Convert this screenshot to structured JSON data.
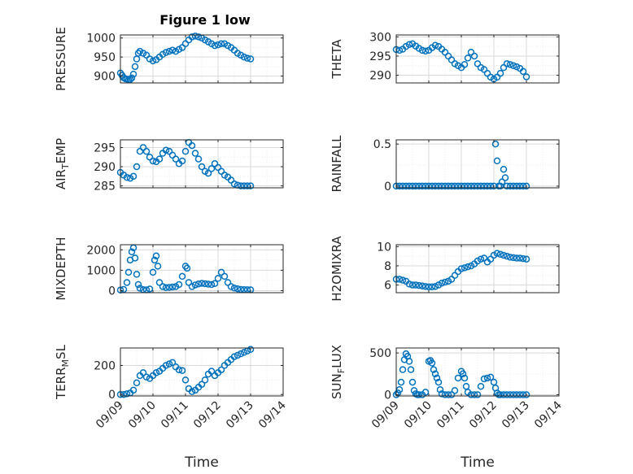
{
  "chart_data": [
    {
      "type": "scatter",
      "title": "Figure 1 low",
      "ylabel": "PRESSURE",
      "xlabel": "",
      "ylim": [
        882,
        1008
      ],
      "yticks": [
        900,
        950,
        1000
      ],
      "ytick_labels": [
        "900",
        "950",
        "1000"
      ],
      "xlim": [
        0,
        5
      ],
      "xtick_labels": [
        "09/09",
        "09/10",
        "09/11",
        "09/12",
        "09/13",
        "09/14"
      ],
      "marker_color": "#0072bd",
      "grid": true,
      "x": [
        0,
        0.05,
        0.1,
        0.15,
        0.2,
        0.25,
        0.3,
        0.35,
        0.4,
        0.45,
        0.5,
        0.55,
        0.6,
        0.7,
        0.8,
        0.9,
        1.0,
        1.1,
        1.2,
        1.3,
        1.4,
        1.5,
        1.6,
        1.7,
        1.8,
        1.9,
        2.0,
        2.1,
        2.2,
        2.3,
        2.4,
        2.5,
        2.6,
        2.7,
        2.8,
        2.9,
        3.0,
        3.1,
        3.2,
        3.3,
        3.4,
        3.5,
        3.6,
        3.7,
        3.8,
        3.9,
        4.0
      ],
      "y": [
        908,
        902,
        896,
        893,
        892,
        890,
        891,
        895,
        905,
        925,
        945,
        960,
        965,
        960,
        955,
        945,
        940,
        943,
        950,
        957,
        962,
        965,
        968,
        965,
        970,
        975,
        985,
        995,
        1003,
        1005,
        1003,
        1000,
        995,
        990,
        985,
        980,
        982,
        985,
        985,
        980,
        975,
        968,
        960,
        955,
        950,
        947,
        945
      ]
    },
    {
      "type": "scatter",
      "ylabel": "THETA",
      "xlabel": "",
      "ylim": [
        288,
        300.5
      ],
      "yticks": [
        290,
        295,
        300
      ],
      "ytick_labels": [
        "290",
        "295",
        "300"
      ],
      "xlim": [
        0,
        5
      ],
      "xtick_labels": [
        "09/09",
        "09/10",
        "09/11",
        "09/12",
        "09/13",
        "09/14"
      ],
      "marker_color": "#0072bd",
      "grid": true,
      "x": [
        0,
        0.1,
        0.2,
        0.3,
        0.4,
        0.5,
        0.6,
        0.7,
        0.8,
        0.9,
        1.0,
        1.1,
        1.2,
        1.3,
        1.4,
        1.5,
        1.6,
        1.7,
        1.8,
        1.9,
        2.0,
        2.1,
        2.2,
        2.3,
        2.4,
        2.5,
        2.6,
        2.7,
        2.8,
        2.9,
        3.0,
        3.1,
        3.2,
        3.3,
        3.4,
        3.5,
        3.6,
        3.7,
        3.8,
        3.9,
        4.0
      ],
      "y": [
        296.7,
        296.5,
        296.8,
        297.5,
        298.0,
        298.2,
        297.6,
        297.0,
        296.5,
        296.3,
        296.5,
        297.2,
        297.8,
        297.5,
        296.8,
        296.0,
        295.0,
        294.0,
        293.0,
        292.5,
        292.0,
        292.8,
        294.5,
        296.0,
        295.0,
        293.0,
        292.0,
        291.5,
        290.5,
        289.5,
        289.0,
        289.5,
        290.5,
        292.0,
        293.0,
        292.8,
        292.5,
        292.2,
        291.8,
        291.0,
        289.6
      ]
    },
    {
      "type": "scatter",
      "ylabel": "AIR_TEMP",
      "xlabel": "",
      "ylim": [
        284.5,
        297
      ],
      "yticks": [
        285,
        290,
        295
      ],
      "ytick_labels": [
        "285",
        "290",
        "295"
      ],
      "xlim": [
        0,
        5
      ],
      "xtick_labels": [
        "09/09",
        "09/10",
        "09/11",
        "09/12",
        "09/13",
        "09/14"
      ],
      "marker_color": "#0072bd",
      "grid": true,
      "x": [
        0,
        0.1,
        0.2,
        0.3,
        0.4,
        0.5,
        0.6,
        0.7,
        0.8,
        0.9,
        1.0,
        1.1,
        1.2,
        1.3,
        1.4,
        1.5,
        1.6,
        1.7,
        1.8,
        1.9,
        2.0,
        2.1,
        2.2,
        2.3,
        2.4,
        2.5,
        2.6,
        2.7,
        2.8,
        2.9,
        3.0,
        3.1,
        3.2,
        3.3,
        3.4,
        3.5,
        3.6,
        3.7,
        3.8,
        3.9,
        4.0
      ],
      "y": [
        288.5,
        287.8,
        287.2,
        287.0,
        287.5,
        290.0,
        294.0,
        295.0,
        294.0,
        292.5,
        291.5,
        291.3,
        292.0,
        293.5,
        294.3,
        294.0,
        293.0,
        292.0,
        290.8,
        291.5,
        294.0,
        296.3,
        295.5,
        293.5,
        292.0,
        290.0,
        288.8,
        288.3,
        289.5,
        290.8,
        289.8,
        288.8,
        287.8,
        287.3,
        286.5,
        285.5,
        285.2,
        285.0,
        285.0,
        285.0,
        285.0
      ]
    },
    {
      "type": "scatter",
      "ylabel": "RAINFALL",
      "xlabel": "",
      "ylim": [
        -0.02,
        0.55
      ],
      "yticks": [
        0,
        0.5
      ],
      "ytick_labels": [
        "0",
        "0.5"
      ],
      "xlim": [
        0,
        5
      ],
      "xtick_labels": [
        "09/09",
        "09/10",
        "09/11",
        "09/12",
        "09/13",
        "09/14"
      ],
      "marker_color": "#0072bd",
      "grid": true,
      "x": [
        0,
        0.1,
        0.2,
        0.3,
        0.4,
        0.5,
        0.6,
        0.7,
        0.8,
        0.9,
        1.0,
        1.1,
        1.2,
        1.3,
        1.4,
        1.5,
        1.6,
        1.7,
        1.8,
        1.9,
        2.0,
        2.1,
        2.2,
        2.3,
        2.4,
        2.5,
        2.6,
        2.7,
        2.8,
        2.9,
        3.0,
        3.05,
        3.1,
        3.15,
        3.2,
        3.25,
        3.3,
        3.35,
        3.4,
        3.5,
        3.6,
        3.7,
        3.8,
        3.9,
        4.0
      ],
      "y": [
        0,
        0,
        0,
        0,
        0,
        0,
        0,
        0,
        0,
        0,
        0,
        0,
        0,
        0,
        0,
        0,
        0,
        0,
        0,
        0,
        0,
        0,
        0,
        0,
        0,
        0,
        0,
        0,
        0,
        0,
        0,
        0.5,
        0.3,
        0,
        0,
        0.05,
        0.2,
        0.1,
        0,
        0,
        0,
        0,
        0,
        0,
        0
      ]
    },
    {
      "type": "scatter",
      "ylabel": "MIXDEPTH",
      "xlabel": "",
      "ylim": [
        -100,
        2250
      ],
      "yticks": [
        0,
        1000,
        2000
      ],
      "ytick_labels": [
        "0",
        "1000",
        "2000"
      ],
      "xlim": [
        0,
        5
      ],
      "xtick_labels": [
        "09/09",
        "09/10",
        "09/11",
        "09/12",
        "09/13",
        "09/14"
      ],
      "marker_color": "#0072bd",
      "grid": true,
      "x": [
        0,
        0.1,
        0.2,
        0.25,
        0.3,
        0.35,
        0.4,
        0.45,
        0.5,
        0.55,
        0.6,
        0.7,
        0.8,
        0.9,
        1.0,
        1.05,
        1.1,
        1.15,
        1.2,
        1.3,
        1.4,
        1.5,
        1.6,
        1.7,
        1.8,
        1.9,
        2.0,
        2.05,
        2.1,
        2.2,
        2.3,
        2.4,
        2.5,
        2.6,
        2.7,
        2.8,
        2.9,
        3.0,
        3.1,
        3.2,
        3.3,
        3.4,
        3.5,
        3.6,
        3.7,
        3.8,
        3.9,
        4.0
      ],
      "y": [
        30,
        60,
        400,
        900,
        1500,
        1900,
        2100,
        1600,
        800,
        300,
        120,
        50,
        40,
        80,
        900,
        1500,
        1700,
        1200,
        400,
        200,
        150,
        160,
        180,
        200,
        300,
        700,
        1200,
        1100,
        400,
        200,
        280,
        330,
        360,
        340,
        320,
        300,
        350,
        600,
        900,
        700,
        400,
        200,
        130,
        90,
        60,
        50,
        45,
        40
      ]
    },
    {
      "type": "scatter",
      "ylabel": "H2OMIXRA",
      "xlabel": "",
      "ylim": [
        5.2,
        10.2
      ],
      "yticks": [
        6,
        8,
        10
      ],
      "ytick_labels": [
        "6",
        "8",
        "10"
      ],
      "xlim": [
        0,
        5
      ],
      "xtick_labels": [
        "09/09",
        "09/10",
        "09/11",
        "09/12",
        "09/13",
        "09/14"
      ],
      "marker_color": "#0072bd",
      "grid": true,
      "x": [
        0,
        0.1,
        0.2,
        0.3,
        0.4,
        0.5,
        0.6,
        0.7,
        0.8,
        0.9,
        1.0,
        1.1,
        1.2,
        1.3,
        1.4,
        1.5,
        1.6,
        1.7,
        1.8,
        1.9,
        2.0,
        2.1,
        2.2,
        2.3,
        2.4,
        2.5,
        2.6,
        2.7,
        2.8,
        2.9,
        3.0,
        3.1,
        3.2,
        3.3,
        3.4,
        3.5,
        3.6,
        3.7,
        3.8,
        3.9,
        4.0
      ],
      "y": [
        6.6,
        6.6,
        6.5,
        6.4,
        6.1,
        6.0,
        6.0,
        5.95,
        5.9,
        5.85,
        5.8,
        5.8,
        5.85,
        6.0,
        6.2,
        6.3,
        6.4,
        6.6,
        7.0,
        7.4,
        7.7,
        7.8,
        7.9,
        8.0,
        8.2,
        8.5,
        8.7,
        8.8,
        8.4,
        8.7,
        9.1,
        9.3,
        9.2,
        9.1,
        9.0,
        8.9,
        8.85,
        8.8,
        8.8,
        8.75,
        8.7
      ]
    },
    {
      "type": "scatter",
      "ylabel": "TERR_MSL",
      "xlabel": "Time",
      "ylim": [
        -10,
        320
      ],
      "yticks": [
        0,
        200
      ],
      "ytick_labels": [
        "0",
        "200"
      ],
      "xlim": [
        0,
        5
      ],
      "xtick_labels": [
        "09/09",
        "09/10",
        "09/11",
        "09/12",
        "09/13",
        "09/14"
      ],
      "marker_color": "#0072bd",
      "grid": true,
      "x": [
        0,
        0.1,
        0.2,
        0.3,
        0.4,
        0.5,
        0.6,
        0.7,
        0.8,
        0.9,
        1.0,
        1.1,
        1.2,
        1.3,
        1.4,
        1.5,
        1.6,
        1.7,
        1.8,
        1.9,
        2.0,
        2.1,
        2.2,
        2.3,
        2.4,
        2.5,
        2.6,
        2.7,
        2.8,
        2.9,
        3.0,
        3.1,
        3.2,
        3.3,
        3.4,
        3.5,
        3.6,
        3.7,
        3.8,
        3.9,
        4.0
      ],
      "y": [
        0,
        0,
        5,
        10,
        30,
        80,
        130,
        150,
        120,
        110,
        130,
        150,
        160,
        180,
        200,
        210,
        220,
        190,
        170,
        165,
        100,
        40,
        20,
        30,
        50,
        70,
        100,
        140,
        160,
        130,
        150,
        170,
        200,
        220,
        240,
        260,
        270,
        280,
        290,
        300,
        310
      ]
    },
    {
      "type": "scatter",
      "ylabel": "SUN_FLUX",
      "xlabel": "Time",
      "ylim": [
        -15,
        560
      ],
      "yticks": [
        0,
        500
      ],
      "ytick_labels": [
        "0",
        "500"
      ],
      "xlim": [
        0,
        5
      ],
      "xtick_labels": [
        "09/09",
        "09/10",
        "09/11",
        "09/12",
        "09/13",
        "09/14"
      ],
      "marker_color": "#0072bd",
      "grid": true,
      "x": [
        0,
        0.05,
        0.1,
        0.15,
        0.2,
        0.25,
        0.3,
        0.35,
        0.4,
        0.45,
        0.5,
        0.55,
        0.6,
        0.65,
        0.7,
        0.8,
        0.9,
        1.0,
        1.05,
        1.1,
        1.15,
        1.2,
        1.25,
        1.3,
        1.35,
        1.4,
        1.5,
        1.6,
        1.7,
        1.8,
        1.9,
        2.0,
        2.05,
        2.1,
        2.15,
        2.2,
        2.3,
        2.4,
        2.5,
        2.6,
        2.7,
        2.8,
        2.9,
        3.0,
        3.05,
        3.1,
        3.15,
        3.2,
        3.3,
        3.4,
        3.5,
        3.6,
        3.7,
        3.8,
        3.9,
        4.0
      ],
      "y": [
        0,
        20,
        60,
        150,
        300,
        420,
        490,
        460,
        400,
        300,
        150,
        50,
        10,
        0,
        0,
        0,
        30,
        400,
        410,
        380,
        300,
        250,
        200,
        150,
        60,
        10,
        0,
        0,
        0,
        50,
        200,
        280,
        250,
        200,
        100,
        30,
        0,
        0,
        0,
        100,
        190,
        200,
        210,
        150,
        80,
        20,
        0,
        0,
        0,
        0,
        0,
        0,
        0,
        0,
        0,
        0
      ]
    }
  ]
}
